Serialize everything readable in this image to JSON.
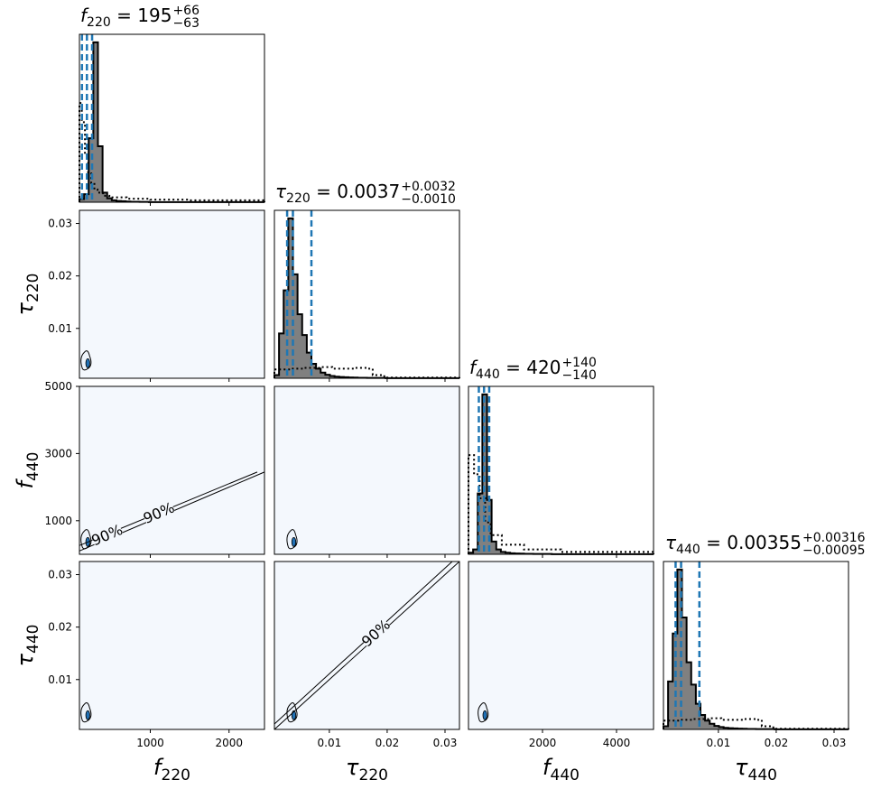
{
  "chart_data": {
    "type": "corner",
    "parameters": [
      {
        "key": "f220",
        "symbol": "f",
        "sub": "220",
        "range": [
          100,
          2450
        ],
        "ticks": [
          1000,
          2000
        ],
        "tick_labels": [
          "1000",
          "2000"
        ],
        "title": {
          "value": "195",
          "plus": "+66",
          "minus": "−63"
        },
        "quantiles": [
          132,
          195,
          261
        ]
      },
      {
        "key": "tau220",
        "symbol": "τ",
        "sub": "220",
        "range": [
          0.0005,
          0.0325
        ],
        "ticks": [
          0.01,
          0.02,
          0.03
        ],
        "tick_labels": [
          "0.01",
          "0.02",
          "0.03"
        ],
        "title": {
          "value": "0.0037",
          "plus": "+0.0032",
          "minus": "−0.0010"
        },
        "quantiles": [
          0.0027,
          0.0037,
          0.0069
        ]
      },
      {
        "key": "f440",
        "symbol": "f",
        "sub": "440",
        "range": [
          0,
          5000
        ],
        "ticks": [
          1000,
          3000,
          5000
        ],
        "tick_labels": [
          "1000",
          "3000",
          "5000"
        ],
        "xticks": [
          2000,
          4000
        ],
        "xtick_labels": [
          "2000",
          "4000"
        ],
        "title": {
          "value": "420",
          "plus": "+140",
          "minus": "−140"
        },
        "quantiles": [
          280,
          420,
          560
        ]
      },
      {
        "key": "tau440",
        "symbol": "τ",
        "sub": "440",
        "range": [
          0.0005,
          0.0325
        ],
        "ticks": [
          0.01,
          0.02,
          0.03
        ],
        "tick_labels": [
          "0.01",
          "0.02",
          "0.03"
        ],
        "title": {
          "value": "0.00355",
          "plus": "+0.00316",
          "minus": "−0.00095"
        },
        "quantiles": [
          0.0026,
          0.00355,
          0.00671
        ]
      }
    ],
    "posterior_hist": [
      {
        "bins": [
          100,
          2450
        ],
        "counts": [
          0.02,
          0.05,
          0.4,
          1.0,
          0.35,
          0.06,
          0.025,
          0.012,
          0.008,
          0.006,
          0.004,
          0.003,
          0.003,
          0.002,
          0.002,
          0.001,
          0.001,
          0.001,
          0.001,
          0.001,
          0.001,
          0.001,
          0.001,
          0.001,
          0.001,
          0.001,
          0.001,
          0.001,
          0.001,
          0.001,
          0.001,
          0.001,
          0.001,
          0.001,
          0.001,
          0.001,
          0.001,
          0.001,
          0.001,
          0.001
        ]
      },
      {
        "bins": [
          0.0005,
          0.0325
        ],
        "counts": [
          0.02,
          0.28,
          0.55,
          1.0,
          0.65,
          0.4,
          0.27,
          0.16,
          0.09,
          0.06,
          0.035,
          0.022,
          0.014,
          0.01,
          0.008,
          0.006,
          0.005,
          0.004,
          0.003,
          0.003,
          0.002,
          0.002,
          0.002,
          0.002,
          0.001,
          0.001,
          0.001,
          0.001,
          0.001,
          0.001,
          0.001,
          0.001,
          0.001,
          0.001,
          0.001,
          0.001,
          0.001,
          0.001,
          0.001,
          0.001
        ]
      },
      {
        "bins": [
          0,
          5000
        ],
        "counts": [
          0.01,
          0.03,
          0.38,
          1.0,
          0.34,
          0.08,
          0.03,
          0.015,
          0.01,
          0.006,
          0.005,
          0.004,
          0.003,
          0.003,
          0.002,
          0.002,
          0.002,
          0.002,
          0.001,
          0.001,
          0.001,
          0.001,
          0.001,
          0.001,
          0.001,
          0.001,
          0.001,
          0.001,
          0.001,
          0.001,
          0.001,
          0.001,
          0.001,
          0.001,
          0.001,
          0.001,
          0.001,
          0.001,
          0.001,
          0.001
        ]
      },
      {
        "bins": [
          0.0005,
          0.0325
        ],
        "counts": [
          0.02,
          0.3,
          0.6,
          1.0,
          0.7,
          0.42,
          0.28,
          0.16,
          0.09,
          0.055,
          0.035,
          0.022,
          0.015,
          0.01,
          0.008,
          0.006,
          0.005,
          0.004,
          0.003,
          0.003,
          0.002,
          0.002,
          0.002,
          0.002,
          0.001,
          0.001,
          0.001,
          0.001,
          0.001,
          0.001,
          0.001,
          0.001,
          0.001,
          0.001,
          0.001,
          0.001,
          0.001,
          0.001,
          0.001,
          0.001
        ]
      }
    ],
    "prior_hist": [
      {
        "x": [
          100,
          130,
          170,
          210,
          250,
          290,
          330,
          400,
          480,
          700,
          1000,
          1500,
          2450
        ],
        "y": [
          0.62,
          0.5,
          0.3,
          0.18,
          0.12,
          0.08,
          0.06,
          0.04,
          0.03,
          0.022,
          0.016,
          0.012,
          0.008
        ]
      },
      {
        "x": [
          0.0005,
          0.0035,
          0.0055,
          0.0085,
          0.0105,
          0.0145,
          0.0165,
          0.0175,
          0.0195,
          0.0325
        ],
        "y": [
          0.055,
          0.06,
          0.065,
          0.07,
          0.06,
          0.065,
          0.06,
          0.02,
          0.004,
          0.004
        ]
      },
      {
        "x": [
          0,
          150,
          300,
          450,
          600,
          900,
          1500,
          2500,
          5000
        ],
        "y": [
          0.62,
          0.5,
          0.35,
          0.2,
          0.12,
          0.06,
          0.03,
          0.015,
          0.008
        ]
      },
      {
        "x": [
          0.0005,
          0.0035,
          0.0055,
          0.0085,
          0.0105,
          0.0145,
          0.0165,
          0.0175,
          0.0195,
          0.0325
        ],
        "y": [
          0.055,
          0.06,
          0.065,
          0.07,
          0.06,
          0.065,
          0.06,
          0.02,
          0.004,
          0.004
        ]
      }
    ],
    "hist_peak_counts": [
      1.0,
      1.0,
      1.0,
      1.0
    ],
    "contour_label": "90%",
    "colors": {
      "posterior_fill": "#808080",
      "quantile_line": "#1f77b4",
      "panel_bg": "#f4f8fd",
      "contour_fill": "#c6dbef",
      "contour_core": "#2171b5"
    }
  }
}
